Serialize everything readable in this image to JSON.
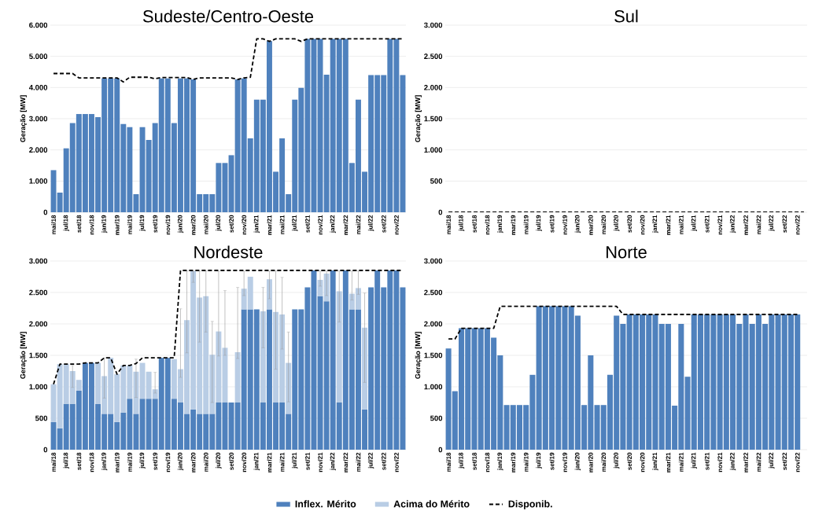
{
  "chart_data": [
    {
      "type": "bar",
      "title": "Sudeste/Centro-Oeste",
      "ylabel": "Geração [MW]",
      "grid": "y",
      "categories": [
        "mai/18",
        null,
        "jul/18",
        null,
        "set/18",
        null,
        "nov/18",
        null,
        "jan/19",
        null,
        "mar/19",
        null,
        "mai/19",
        null,
        "jul/19",
        null,
        "set/19",
        null,
        "nov/19",
        null,
        "jan/20",
        null,
        "mar/20",
        null,
        "mai/20",
        null,
        "jul/20",
        null,
        "set/20",
        null,
        "nov/20",
        null,
        "jan/21",
        null,
        "mar/21",
        null,
        "mai/21",
        null,
        "jul/21",
        null,
        "set/21",
        null,
        "nov/21",
        null,
        "jan/22",
        null,
        "mar/22",
        null,
        "mai/22",
        null,
        "jul/22",
        null,
        "set/22",
        null,
        "nov/22",
        null
      ],
      "ylim": [
        0,
        6000
      ],
      "yticks": [
        0,
        {
          "value": 1000,
          "label": "1.000"
        },
        {
          "value": 2000,
          "label": "2.000"
        },
        {
          "value": 3000,
          "label": "3.000"
        },
        {
          "value": 4000,
          "label": "4.000"
        },
        {
          "value": 5000,
          "label": "5.000"
        },
        {
          "value": 6000,
          "label": "6.000"
        }
      ],
      "series": [
        {
          "color": "#4f81bd",
          "values": [
            1350,
            630,
            2050,
            2860,
            3150,
            3150,
            3150,
            3050,
            4290,
            4290,
            4290,
            2830,
            2730,
            580,
            2730,
            2320,
            2860,
            4290,
            4290,
            2860,
            4290,
            4290,
            4260,
            580,
            580,
            580,
            1580,
            1580,
            1830,
            4260,
            4290,
            2370,
            3610,
            3610,
            5490,
            1300,
            2370,
            580,
            3610,
            3990,
            5560,
            5560,
            5560,
            4410,
            5560,
            5560,
            5560,
            1580,
            3610,
            1300,
            4400,
            4400,
            4400,
            5560,
            5560,
            4400
          ]
        },
        {
          "type": "line",
          "color": "#000000",
          "line_style": "dashed",
          "values": [
            4450,
            4450,
            4450,
            4450,
            4310,
            4310,
            4310,
            4310,
            4310,
            4310,
            4310,
            4180,
            4330,
            4330,
            4330,
            4330,
            4280,
            4320,
            4320,
            4320,
            4320,
            4320,
            4260,
            4310,
            4310,
            4310,
            4310,
            4310,
            4310,
            4260,
            4310,
            4330,
            5560,
            5560,
            5480,
            5560,
            5560,
            5560,
            5560,
            5480,
            5560,
            5560,
            5560,
            5560,
            5560,
            5560,
            5560,
            5560,
            5560,
            5560,
            5560,
            5560,
            5560,
            5560,
            5560,
            5560
          ]
        }
      ]
    },
    {
      "type": "line",
      "title": "Sul",
      "ylabel": "Geração [MW]",
      "grid": "y",
      "categories": [
        "mai/18",
        null,
        "jul/18",
        null,
        "set/18",
        null,
        "nov/18",
        null,
        "jan/19",
        null,
        "mar/19",
        null,
        "mai/19",
        null,
        "jul/19",
        null,
        "set/19",
        null,
        "nov/19",
        null,
        "jan/20",
        null,
        "mar/20",
        null,
        "mai/20",
        null,
        "jul/20",
        null,
        "set/20",
        null,
        "nov/20",
        null,
        "jan/21",
        null,
        "mar/21",
        null,
        "mai/21",
        null,
        "jul/21",
        null,
        "set/21",
        null,
        "nov/21",
        null,
        "jan/22",
        null,
        "mar/22",
        null,
        "mai/22",
        null,
        "jul/22",
        null,
        "set/22",
        null,
        "nov/22",
        null
      ],
      "ylim": [
        0,
        3000
      ],
      "yticks": [
        0,
        500,
        {
          "value": 1000,
          "label": "1.000"
        },
        {
          "value": 1500,
          "label": "1.500"
        },
        {
          "value": 2000,
          "label": "2.000"
        },
        {
          "value": 2500,
          "label": "2.500"
        },
        {
          "value": 3000,
          "label": "3.000"
        }
      ],
      "series": [
        {
          "type": "line",
          "color": "#000000",
          "line_style": "dashed",
          "values": [
            0,
            0,
            0,
            0,
            0,
            0,
            0,
            0,
            0,
            0,
            0,
            0,
            0,
            0,
            0,
            0,
            0,
            0,
            0,
            0,
            0,
            0,
            0,
            0,
            0,
            0,
            0,
            0,
            0,
            0,
            0,
            0,
            0,
            0,
            0,
            0,
            0,
            0,
            0,
            0,
            0,
            0,
            0,
            0,
            0,
            0,
            0,
            0,
            0,
            0,
            0,
            0,
            0,
            0,
            0,
            0
          ]
        }
      ]
    },
    {
      "type": "bar",
      "title": "Nordeste",
      "ylabel": "Geração [MW]",
      "grid": "y",
      "stacked": true,
      "legend": "bottom",
      "categories": [
        "mai/18",
        null,
        "jul/18",
        null,
        "set/18",
        null,
        "nov/18",
        null,
        "jan/19",
        null,
        "mar/19",
        null,
        "mai/19",
        null,
        "jul/19",
        null,
        "set/19",
        null,
        "nov/19",
        null,
        "jan/20",
        null,
        "mar/20",
        null,
        "mai/20",
        null,
        "jul/20",
        null,
        "set/20",
        null,
        "nov/20",
        null,
        "jan/21",
        null,
        "mar/21",
        null,
        "mai/21",
        null,
        "jul/21",
        null,
        "set/21",
        null,
        "nov/21",
        null,
        "jan/22",
        null,
        "mar/22",
        null,
        "mai/22",
        null,
        "jul/22",
        null,
        "set/22",
        null,
        "nov/22",
        null
      ],
      "ylim": [
        0,
        3000
      ],
      "yticks": [
        0,
        500,
        {
          "value": 1000,
          "label": "1.000"
        },
        {
          "value": 1500,
          "label": "1.500"
        },
        {
          "value": 2000,
          "label": "2.000"
        },
        {
          "value": 2500,
          "label": "2.500"
        },
        {
          "value": 3000,
          "label": "3.000"
        }
      ],
      "series": [
        {
          "name": "Inflex. Mérito",
          "color": "#4f81bd",
          "values": [
            440,
            340,
            730,
            730,
            940,
            1380,
            1380,
            730,
            570,
            570,
            440,
            590,
            810,
            570,
            810,
            810,
            810,
            1460,
            1460,
            810,
            750,
            570,
            640,
            570,
            570,
            570,
            750,
            750,
            750,
            750,
            2230,
            2230,
            2230,
            750,
            2230,
            750,
            750,
            570,
            2230,
            2230,
            2580,
            2850,
            2440,
            2360,
            2850,
            750,
            2850,
            2230,
            2230,
            640,
            2580,
            2850,
            2580,
            2850,
            2850,
            2580
          ]
        },
        {
          "name": "Acima do Mérito",
          "color": "#b9cde5",
          "values": [
            600,
            1020,
            630,
            520,
            170,
            0,
            0,
            650,
            600,
            890,
            760,
            750,
            530,
            670,
            570,
            430,
            150,
            0,
            0,
            630,
            530,
            1490,
            2200,
            1850,
            1870,
            940,
            1130,
            870,
            0,
            800,
            330,
            520,
            0,
            1450,
            480,
            1440,
            1400,
            810,
            0,
            0,
            0,
            0,
            260,
            440,
            0,
            1770,
            0,
            250,
            340,
            1300,
            0,
            0,
            0,
            0,
            0,
            0
          ],
          "errors": [
            null,
            null,
            null,
            [
              990,
              1340
            ],
            null,
            null,
            null,
            null,
            [
              820,
              1460
            ],
            null,
            null,
            null,
            null,
            [
              830,
              1440
            ],
            null,
            null,
            [
              900,
              1230
            ],
            null,
            null,
            null,
            [
              1150,
              2240
            ],
            [
              1540,
              2840
            ],
            [
              2660,
              2840
            ],
            [
              1710,
              2840
            ],
            [
              1870,
              2840
            ],
            [
              750,
              2040
            ],
            [
              1490,
              2840
            ],
            [
              1500,
              2530
            ],
            null,
            [
              1450,
              2580
            ],
            [
              2450,
              2840
            ],
            null,
            null,
            [
              1620,
              2580
            ],
            [
              2400,
              2840
            ],
            [
              1280,
              2840
            ],
            [
              1600,
              2740
            ],
            [
              760,
              1870
            ],
            null,
            null,
            null,
            null,
            [
              2600,
              2840
            ],
            [
              2450,
              2840
            ],
            null,
            [
              2030,
              2840
            ],
            null,
            [
              2380,
              2840
            ],
            [
              2470,
              2840
            ],
            [
              1070,
              2490
            ],
            null,
            null,
            null,
            null,
            null,
            null
          ]
        },
        {
          "name": "Disponib.",
          "type": "line",
          "color": "#000000",
          "line_style": "dashed",
          "values": [
            1040,
            1360,
            1360,
            1360,
            1360,
            1380,
            1380,
            1380,
            1460,
            1460,
            1200,
            1340,
            1340,
            1370,
            1460,
            1460,
            1460,
            1460,
            1460,
            1460,
            2850,
            2850,
            2850,
            2850,
            2850,
            2850,
            2850,
            2850,
            2850,
            2850,
            2850,
            2850,
            2850,
            2850,
            2850,
            2850,
            2850,
            2850,
            2850,
            2850,
            2850,
            2850,
            2850,
            2850,
            2850,
            2850,
            2850,
            2850,
            2850,
            2850,
            2850,
            2850,
            2850,
            2850,
            2850,
            2850
          ]
        }
      ]
    },
    {
      "type": "bar",
      "title": "Norte",
      "ylabel": "Geração [MW]",
      "grid": "y",
      "categories": [
        "mai/18",
        null,
        "jul/18",
        null,
        "set/18",
        null,
        "nov/18",
        null,
        "jan/19",
        null,
        "mar/19",
        null,
        "mai/19",
        null,
        "jul/19",
        null,
        "set/19",
        null,
        "nov/19",
        null,
        "jan/20",
        null,
        "mar/20",
        null,
        "mai/20",
        null,
        "jul/20",
        null,
        "set/20",
        null,
        "nov/20",
        null,
        "jan/21",
        null,
        "mar/21",
        null,
        "mai/21",
        null,
        "jul/21",
        null,
        "set/21",
        null,
        "nov/21",
        null,
        "jan/22",
        null,
        "mar/22",
        null,
        "mai/22",
        null,
        "jul/22",
        null,
        "set/22",
        null,
        "nov/22",
        null
      ],
      "ylim": [
        0,
        3000
      ],
      "yticks": [
        0,
        500,
        {
          "value": 1000,
          "label": "1.000"
        },
        {
          "value": 1500,
          "label": "1.500"
        },
        {
          "value": 2000,
          "label": "2.000"
        },
        {
          "value": 2500,
          "label": "2.500"
        },
        {
          "value": 3000,
          "label": "3.000"
        }
      ],
      "series": [
        {
          "color": "#4f81bd",
          "values": [
            1610,
            930,
            1930,
            1930,
            1930,
            1930,
            1930,
            1780,
            1500,
            710,
            710,
            710,
            710,
            1190,
            2280,
            2280,
            2280,
            2280,
            2280,
            2280,
            2130,
            710,
            1500,
            710,
            710,
            1190,
            2130,
            2000,
            2150,
            2150,
            2150,
            2150,
            2150,
            2000,
            2000,
            700,
            2000,
            1160,
            2150,
            2150,
            2150,
            2150,
            2150,
            2150,
            2150,
            2000,
            2150,
            2000,
            2150,
            2000,
            2150,
            2150,
            2150,
            2150,
            2150,
            null
          ]
        },
        {
          "type": "line",
          "color": "#000000",
          "line_style": "dashed",
          "values": [
            1760,
            1760,
            1930,
            1930,
            1930,
            1930,
            1930,
            1930,
            2280,
            2280,
            2280,
            2280,
            2280,
            2280,
            2280,
            2280,
            2280,
            2280,
            2280,
            2280,
            2280,
            2280,
            2280,
            2280,
            2280,
            2280,
            2280,
            2150,
            2150,
            2150,
            2150,
            2150,
            2150,
            2150,
            2150,
            2150,
            2150,
            2150,
            2150,
            2150,
            2150,
            2150,
            2150,
            2150,
            2150,
            2150,
            2150,
            2150,
            2150,
            2150,
            2150,
            2150,
            2150,
            2150,
            2150,
            null
          ]
        }
      ]
    }
  ]
}
